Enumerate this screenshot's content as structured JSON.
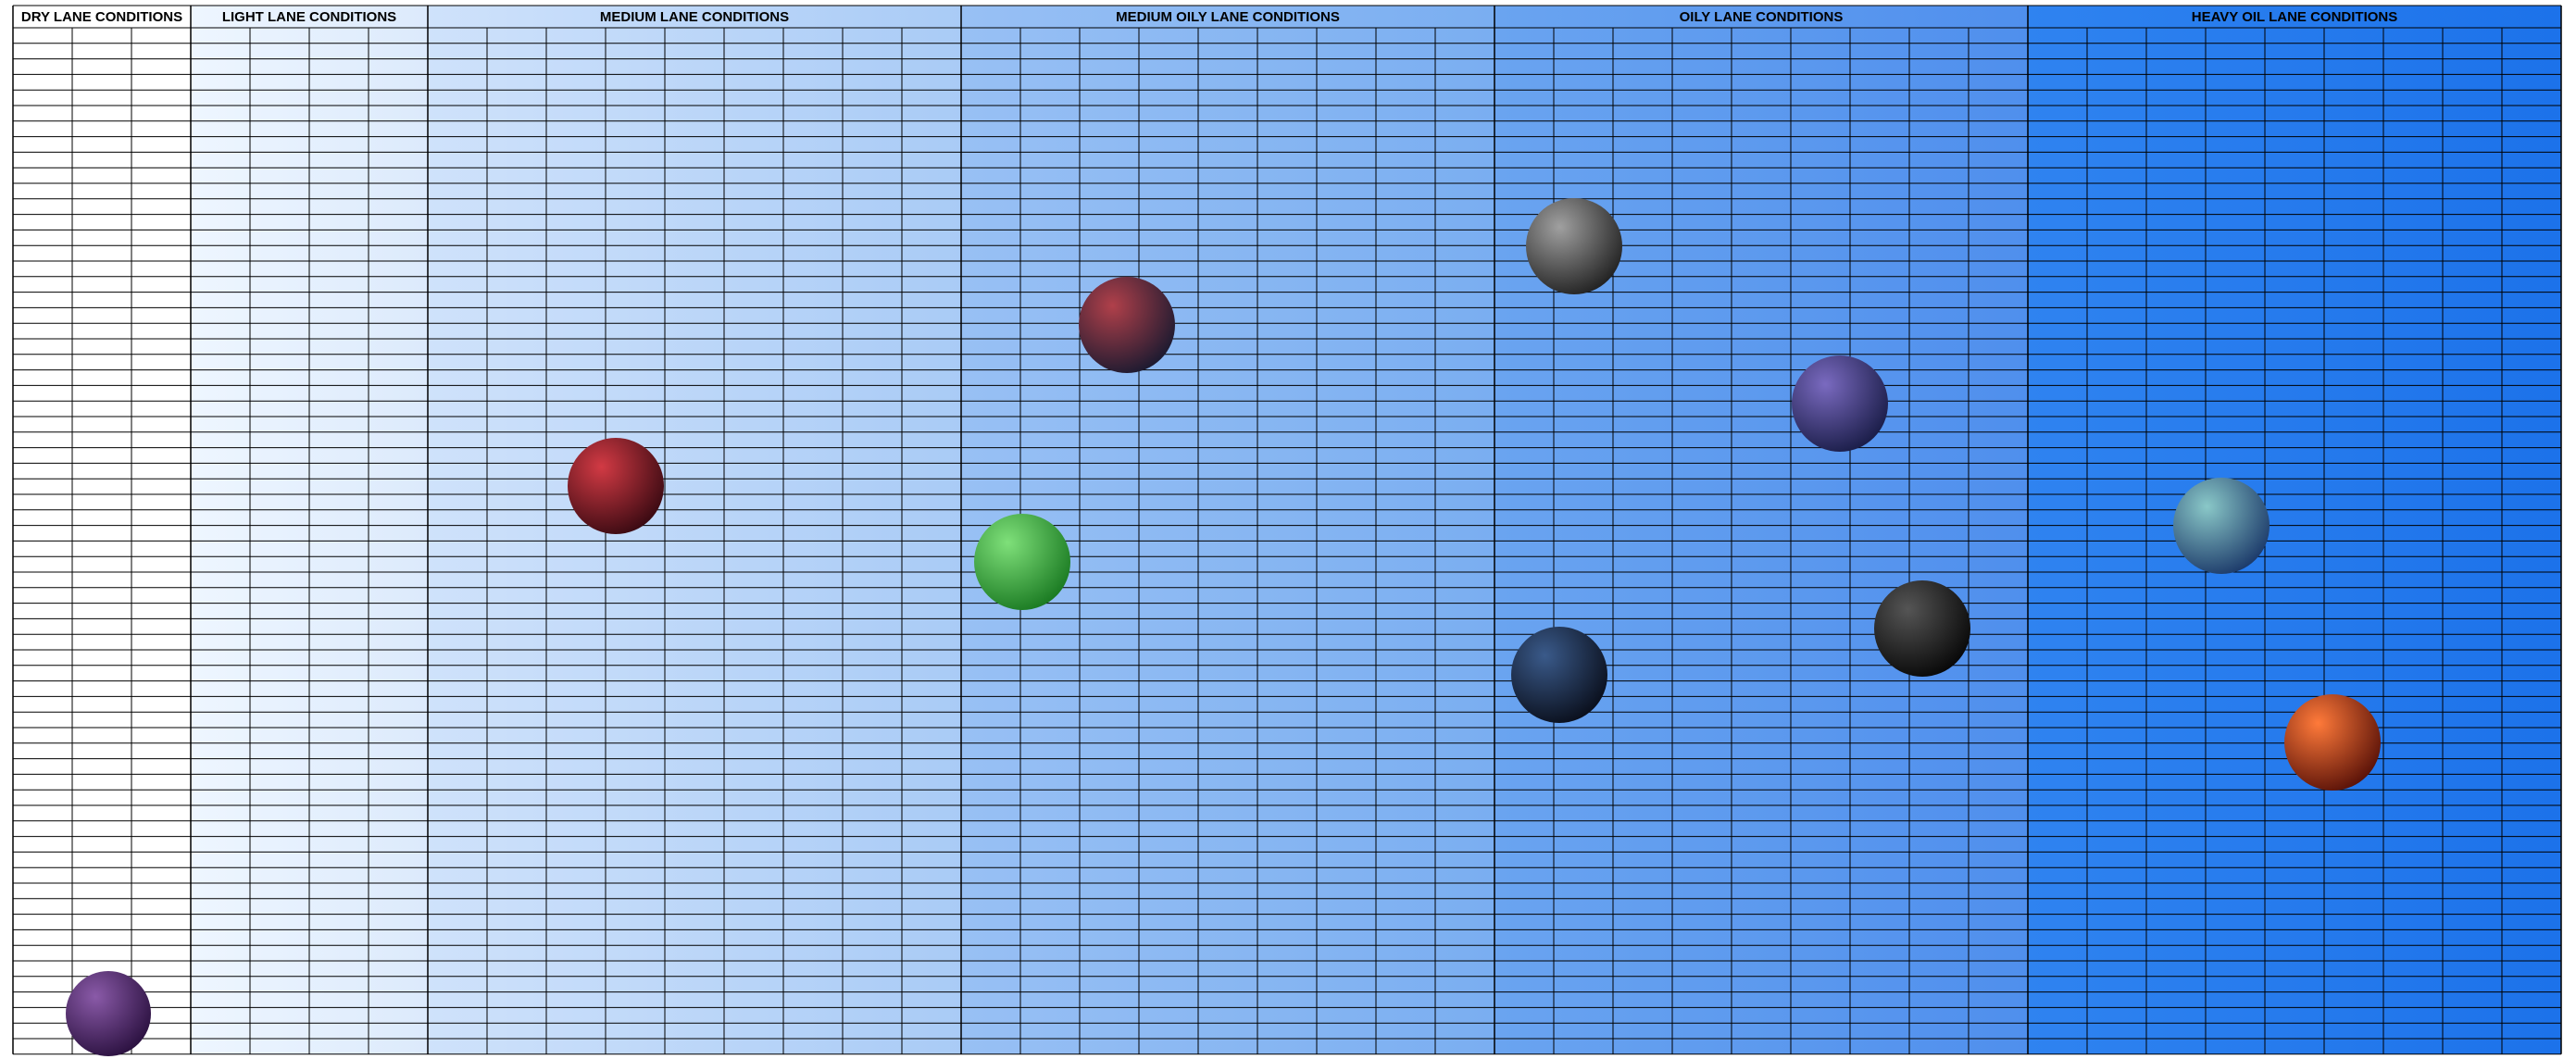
{
  "sections": [
    {
      "title": "DRY LANE CONDITIONS"
    },
    {
      "title": "LIGHT LANE CONDITIONS"
    },
    {
      "title": "MEDIUM LANE CONDITIONS"
    },
    {
      "title": "MEDIUM OILY LANE CONDITIONS"
    },
    {
      "title": "OILY LANE CONDITIONS"
    },
    {
      "title": "HEAVY OIL LANE CONDITIONS"
    }
  ]
}
